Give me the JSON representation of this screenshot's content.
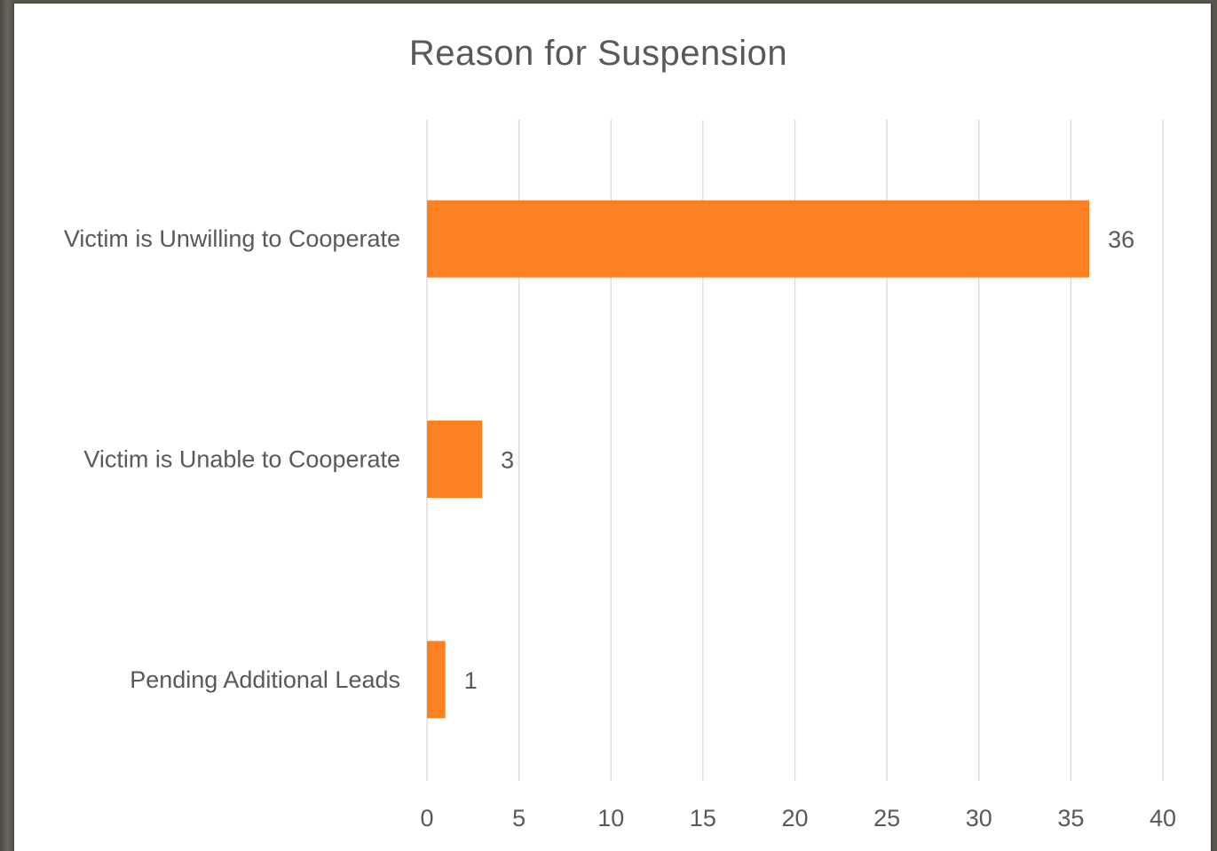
{
  "chart_data": {
    "type": "bar",
    "orientation": "horizontal",
    "title": "Reason for Suspension",
    "categories": [
      "Victim is Unwilling to Cooperate",
      "Victim is Unable to Cooperate",
      "Pending Additional Leads"
    ],
    "values": [
      36,
      3,
      1
    ],
    "xlim": [
      0,
      40
    ],
    "x_ticks": [
      0,
      5,
      10,
      15,
      20,
      25,
      30,
      35,
      40
    ],
    "grid": "vertical",
    "bar_color": "#FD8023",
    "data_labels": true
  }
}
